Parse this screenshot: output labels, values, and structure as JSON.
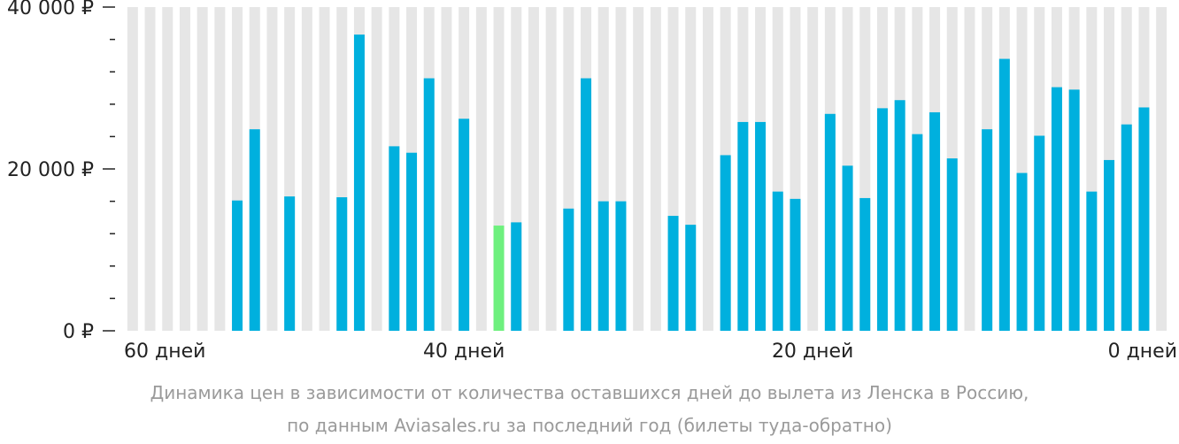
{
  "chart_data": {
    "type": "bar",
    "x_tick_labels": [
      "60 дней",
      "40 дней",
      "20 дней",
      "0 дней"
    ],
    "x_tick_days": [
      60,
      40,
      20,
      0
    ],
    "y_tick_labels": [
      "40 000 ₽",
      "20 000 ₽",
      "0 ₽"
    ],
    "y_tick_values": [
      40000,
      20000,
      0
    ],
    "ylim": [
      0,
      40000
    ],
    "days_left": [
      59,
      58,
      57,
      56,
      55,
      54,
      53,
      52,
      51,
      50,
      49,
      48,
      47,
      46,
      45,
      44,
      43,
      42,
      41,
      40,
      39,
      38,
      37,
      36,
      35,
      34,
      33,
      32,
      31,
      30,
      29,
      28,
      27,
      26,
      25,
      24,
      23,
      22,
      21,
      20,
      19,
      18,
      17,
      16,
      15,
      14,
      13,
      12,
      11,
      10,
      9,
      8,
      7,
      6,
      5,
      4,
      3,
      2,
      1,
      0
    ],
    "values": [
      null,
      null,
      null,
      null,
      null,
      null,
      16100,
      24900,
      null,
      16600,
      null,
      null,
      16500,
      36600,
      null,
      22800,
      22000,
      31200,
      null,
      26200,
      null,
      13000,
      13400,
      null,
      null,
      15100,
      31200,
      16000,
      16000,
      null,
      null,
      14200,
      13100,
      null,
      21700,
      25800,
      25800,
      17200,
      16300,
      null,
      26800,
      20400,
      16400,
      27500,
      28500,
      24300,
      27000,
      21300,
      null,
      24900,
      33600,
      19500,
      24100,
      30100,
      29800,
      17200,
      21100,
      25500,
      27600,
      null
    ],
    "highlight_index": 21,
    "colors": {
      "bar": "#00b0de",
      "highlight": "#6ef07e",
      "background_column": "#e6e6e6",
      "axis_text": "#222222",
      "caption": "#9a9a9a"
    }
  },
  "caption": {
    "line1": "Динамика цен в зависимости от количества оставшихся дней до вылета из Ленска в Россию,",
    "line2": "по данным Aviasales.ru за последний год (билеты туда-обратно)"
  }
}
